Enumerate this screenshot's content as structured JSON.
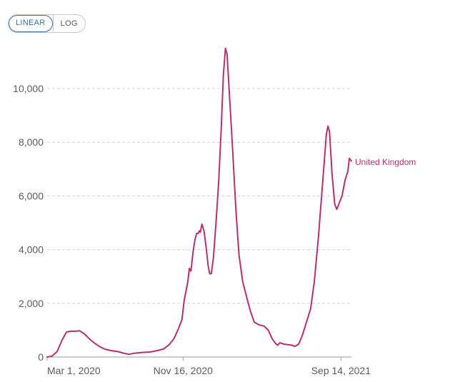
{
  "controls": {
    "linear_label": "LINEAR",
    "log_label": "LOG"
  },
  "chart_data": {
    "type": "line",
    "title": "",
    "xlabel": "",
    "ylabel": "",
    "scale": "linear",
    "grid": true,
    "ylim": [
      0,
      11500
    ],
    "xlim": [
      "2020-03-01",
      "2021-10-04"
    ],
    "y_ticks": [
      0,
      2000,
      4000,
      6000,
      8000,
      10000
    ],
    "y_tick_labels": [
      "0",
      "2,000",
      "4,000",
      "6,000",
      "8,000",
      "10,000"
    ],
    "x_ticks": [
      "2020-03-01",
      "2020-11-16",
      "2021-09-14"
    ],
    "x_tick_labels": [
      "Mar 1, 2020",
      "Nov 16, 2020",
      "Sep 14, 2021"
    ],
    "series": [
      {
        "name": "United Kingdom",
        "color": "#b8306a",
        "points": [
          [
            "2020-03-01",
            0
          ],
          [
            "2020-03-10",
            30
          ],
          [
            "2020-03-20",
            200
          ],
          [
            "2020-03-30",
            650
          ],
          [
            "2020-04-07",
            930
          ],
          [
            "2020-04-15",
            960
          ],
          [
            "2020-04-25",
            960
          ],
          [
            "2020-05-02",
            980
          ],
          [
            "2020-05-12",
            850
          ],
          [
            "2020-05-22",
            650
          ],
          [
            "2020-06-01",
            500
          ],
          [
            "2020-06-10",
            380
          ],
          [
            "2020-06-20",
            290
          ],
          [
            "2020-07-01",
            240
          ],
          [
            "2020-07-15",
            200
          ],
          [
            "2020-07-28",
            130
          ],
          [
            "2020-08-05",
            100
          ],
          [
            "2020-08-15",
            140
          ],
          [
            "2020-08-30",
            170
          ],
          [
            "2020-09-15",
            190
          ],
          [
            "2020-09-30",
            250
          ],
          [
            "2020-10-10",
            300
          ],
          [
            "2020-10-20",
            450
          ],
          [
            "2020-10-30",
            700
          ],
          [
            "2020-11-08",
            1100
          ],
          [
            "2020-11-14",
            1400
          ],
          [
            "2020-11-18",
            2100
          ],
          [
            "2020-11-25",
            2800
          ],
          [
            "2020-11-28",
            3300
          ],
          [
            "2020-12-01",
            3200
          ],
          [
            "2020-12-05",
            3900
          ],
          [
            "2020-12-09",
            4400
          ],
          [
            "2020-12-12",
            4600
          ],
          [
            "2020-12-15",
            4600
          ],
          [
            "2020-12-17",
            4700
          ],
          [
            "2020-12-19",
            4650
          ],
          [
            "2020-12-22",
            4950
          ],
          [
            "2020-12-26",
            4700
          ],
          [
            "2020-12-30",
            4100
          ],
          [
            "2021-01-03",
            3400
          ],
          [
            "2021-01-06",
            3100
          ],
          [
            "2021-01-09",
            3100
          ],
          [
            "2021-01-13",
            3700
          ],
          [
            "2021-01-18",
            5000
          ],
          [
            "2021-01-23",
            6500
          ],
          [
            "2021-01-28",
            8500
          ],
          [
            "2021-02-01",
            10500
          ],
          [
            "2021-02-05",
            11500
          ],
          [
            "2021-02-08",
            11300
          ],
          [
            "2021-02-12",
            10000
          ],
          [
            "2021-02-18",
            8000
          ],
          [
            "2021-02-25",
            5500
          ],
          [
            "2021-03-03",
            3800
          ],
          [
            "2021-03-10",
            2800
          ],
          [
            "2021-03-18",
            2200
          ],
          [
            "2021-03-25",
            1700
          ],
          [
            "2021-04-01",
            1300
          ],
          [
            "2021-04-10",
            1200
          ],
          [
            "2021-04-20",
            1150
          ],
          [
            "2021-04-28",
            1000
          ],
          [
            "2021-05-05",
            700
          ],
          [
            "2021-05-12",
            500
          ],
          [
            "2021-05-16",
            440
          ],
          [
            "2021-05-20",
            530
          ],
          [
            "2021-05-28",
            480
          ],
          [
            "2021-06-05",
            460
          ],
          [
            "2021-06-12",
            440
          ],
          [
            "2021-06-18",
            400
          ],
          [
            "2021-06-25",
            480
          ],
          [
            "2021-07-02",
            800
          ],
          [
            "2021-07-10",
            1300
          ],
          [
            "2021-07-18",
            1800
          ],
          [
            "2021-07-25",
            2800
          ],
          [
            "2021-08-02",
            4500
          ],
          [
            "2021-08-10",
            6500
          ],
          [
            "2021-08-17",
            8300
          ],
          [
            "2021-08-20",
            8600
          ],
          [
            "2021-08-23",
            8400
          ],
          [
            "2021-08-28",
            6800
          ],
          [
            "2021-09-02",
            5700
          ],
          [
            "2021-09-06",
            5500
          ],
          [
            "2021-09-10",
            5700
          ],
          [
            "2021-09-16",
            6000
          ],
          [
            "2021-09-22",
            6600
          ],
          [
            "2021-09-27",
            6900
          ],
          [
            "2021-09-30",
            7400
          ],
          [
            "2021-10-02",
            7350
          ],
          [
            "2021-10-04",
            7300
          ]
        ]
      }
    ]
  }
}
